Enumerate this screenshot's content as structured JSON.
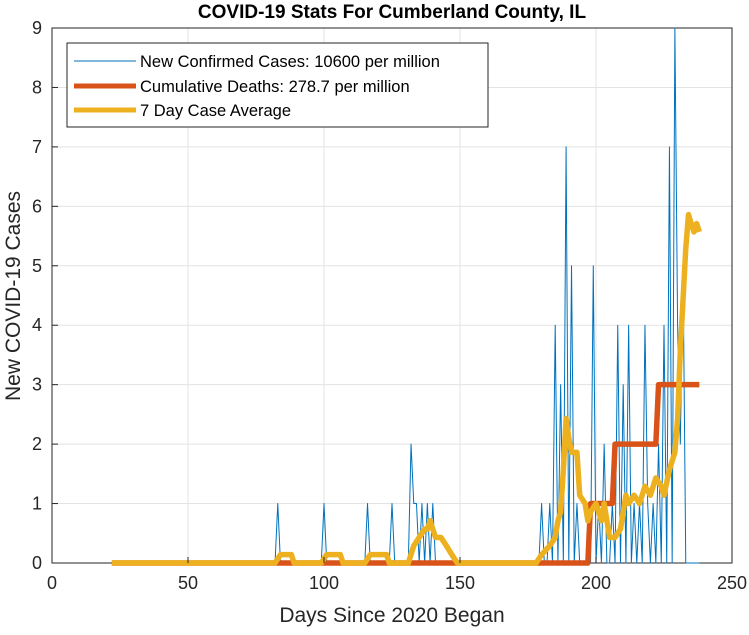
{
  "chart_data": {
    "type": "line",
    "title": "COVID-19 Stats For Cumberland County, IL",
    "xlabel": "Days Since 2020 Began",
    "ylabel": "New COVID-19 Cases",
    "xlim": [
      0,
      250
    ],
    "ylim": [
      0,
      9
    ],
    "xticks": [
      0,
      50,
      100,
      150,
      200,
      250
    ],
    "yticks": [
      0,
      1,
      2,
      3,
      4,
      5,
      6,
      7,
      8,
      9
    ],
    "grid": true,
    "legend_position": "top-left",
    "series": [
      {
        "name": "New Confirmed Cases: 10600 per million",
        "color": "#0072BD",
        "line_style": "thin",
        "x": [
          22,
          82,
          83,
          84,
          99,
          100,
          101,
          115,
          116,
          117,
          124,
          125,
          126,
          131,
          132,
          133,
          134,
          135,
          136,
          137,
          138,
          139,
          140,
          141,
          142,
          143,
          179,
          180,
          181,
          182,
          183,
          184,
          185,
          186,
          187,
          188,
          189,
          190,
          191,
          192,
          193,
          194,
          195,
          196,
          197,
          198,
          199,
          200,
          201,
          202,
          203,
          204,
          205,
          206,
          207,
          208,
          209,
          210,
          211,
          212,
          213,
          214,
          215,
          216,
          217,
          218,
          219,
          220,
          221,
          222,
          223,
          224,
          225,
          226,
          227,
          228,
          229,
          230,
          231,
          232,
          233,
          234,
          235,
          236,
          237,
          238
        ],
        "values": [
          0,
          0,
          1,
          0,
          0,
          1,
          0,
          0,
          1,
          0,
          0,
          1,
          0,
          0,
          2,
          1,
          1,
          0,
          1,
          0,
          1,
          0,
          1,
          0,
          0,
          0,
          0,
          1,
          0,
          0,
          1,
          0,
          4,
          0,
          3,
          0,
          7,
          0,
          5,
          0,
          1,
          0,
          0,
          0,
          0,
          0,
          5,
          0,
          1,
          0,
          2,
          0,
          0,
          1,
          0,
          4,
          0,
          3,
          0,
          4,
          0,
          1,
          0,
          1,
          0,
          4,
          1,
          0,
          1,
          0,
          2,
          0,
          4,
          0,
          7,
          0,
          9,
          4,
          2,
          5,
          0,
          0,
          0,
          0,
          0,
          0
        ]
      },
      {
        "name": "Cumulative Deaths: 278.7 per million",
        "color": "#D95319",
        "line_style": "thick",
        "x": [
          22,
          197,
          198,
          206,
          207,
          222,
          223,
          238
        ],
        "values": [
          0,
          0,
          1,
          1,
          2,
          2,
          3,
          3
        ]
      },
      {
        "name": "7 Day Case Average",
        "color": "#EDB120",
        "line_style": "thick",
        "x": [
          22,
          82,
          84,
          88,
          89,
          99,
          101,
          106,
          107,
          115,
          117,
          123,
          124,
          131,
          133,
          135,
          137,
          138,
          139,
          140,
          141,
          143,
          145,
          147,
          149,
          178,
          180,
          183,
          185,
          186,
          187,
          188,
          189,
          190,
          191,
          193,
          194,
          196,
          197,
          198,
          200,
          202,
          203,
          205,
          207,
          209,
          211,
          212,
          214,
          216,
          218,
          220,
          222,
          224,
          225,
          227,
          229,
          230,
          231,
          232,
          233,
          234,
          235,
          236,
          237,
          238
        ],
        "values": [
          0,
          0,
          0.14,
          0.14,
          0,
          0,
          0.14,
          0.14,
          0,
          0,
          0.14,
          0.14,
          0,
          0,
          0.29,
          0.43,
          0.57,
          0.57,
          0.71,
          0.57,
          0.43,
          0.43,
          0.29,
          0.14,
          0,
          0,
          0.14,
          0.29,
          0.43,
          0.71,
          0.86,
          1.57,
          2.43,
          2.1,
          1.86,
          1.86,
          1.14,
          1.0,
          0.71,
          0.86,
          1.0,
          0.71,
          1.0,
          0.43,
          0.43,
          0.57,
          1.14,
          1.0,
          1.14,
          1.0,
          1.29,
          1.14,
          1.43,
          1.29,
          1.14,
          1.57,
          1.86,
          2.43,
          3.57,
          4.43,
          5.29,
          5.86,
          5.71,
          5.57,
          5.71,
          5.57
        ]
      }
    ]
  }
}
